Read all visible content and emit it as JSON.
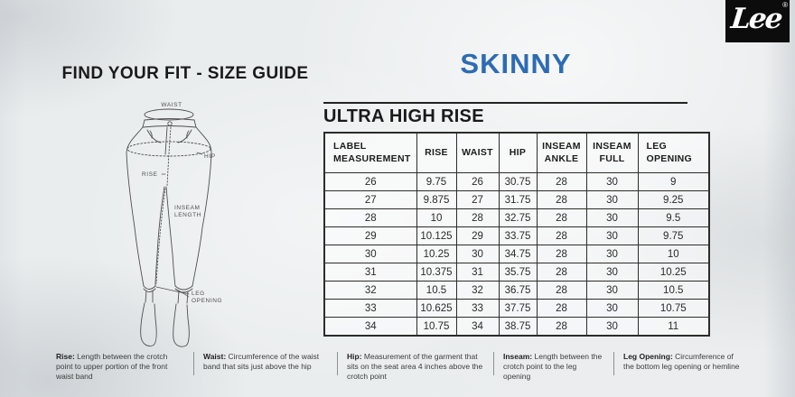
{
  "logo": {
    "text": "Lee",
    "registered": "®"
  },
  "left_section": {
    "title": "FIND YOUR FIT - SIZE GUIDE",
    "diagram_labels": {
      "waist": "WAIST",
      "hip": "HIP",
      "rise": "RISE",
      "inseam_line1": "INSEAM",
      "inseam_line2": "LENGTH",
      "leg_opening_line1": "LEG",
      "leg_opening_line2": "OPENING"
    }
  },
  "right_section": {
    "fit_title": "SKINNY",
    "rise_title": "ULTRA HIGH RISE",
    "table": {
      "headers": [
        "LABEL MEASUREMENT",
        "RISE",
        "WAIST",
        "HIP",
        "INSEAM ANKLE",
        "INSEAM FULL",
        "LEG OPENING"
      ],
      "rows": [
        [
          "26",
          "9.75",
          "26",
          "30.75",
          "28",
          "30",
          "9"
        ],
        [
          "27",
          "9.875",
          "27",
          "31.75",
          "28",
          "30",
          "9.25"
        ],
        [
          "28",
          "10",
          "28",
          "32.75",
          "28",
          "30",
          "9.5"
        ],
        [
          "29",
          "10.125",
          "29",
          "33.75",
          "28",
          "30",
          "9.75"
        ],
        [
          "30",
          "10.25",
          "30",
          "34.75",
          "28",
          "30",
          "10"
        ],
        [
          "31",
          "10.375",
          "31",
          "35.75",
          "28",
          "30",
          "10.25"
        ],
        [
          "32",
          "10.5",
          "32",
          "36.75",
          "28",
          "30",
          "10.5"
        ],
        [
          "33",
          "10.625",
          "33",
          "37.75",
          "28",
          "30",
          "10.75"
        ],
        [
          "34",
          "10.75",
          "34",
          "38.75",
          "28",
          "30",
          "11"
        ]
      ]
    }
  },
  "footer": {
    "definitions": [
      {
        "term": "Rise:",
        "text": "Length between the crotch point to upper portion of the front waist band"
      },
      {
        "term": "Waist:",
        "text": "Circumference of the waist band that sits just above the hip"
      },
      {
        "term": "Hip:",
        "text": "Measurement of the garment that sits on the seat area 4 inches above the crotch point"
      },
      {
        "term": "Inseam:",
        "text": "Length between the crotch point to the leg opening"
      },
      {
        "term": "Leg Opening:",
        "text": "Circumference of the bottom leg opening or hemline"
      }
    ]
  },
  "colors": {
    "accent_blue": "#2d6cb4",
    "heading_black": "#1a1a1a",
    "table_border": "#2c2c2a",
    "background_paper": "#e9ebed",
    "logo_background": "#0c0c0c"
  }
}
